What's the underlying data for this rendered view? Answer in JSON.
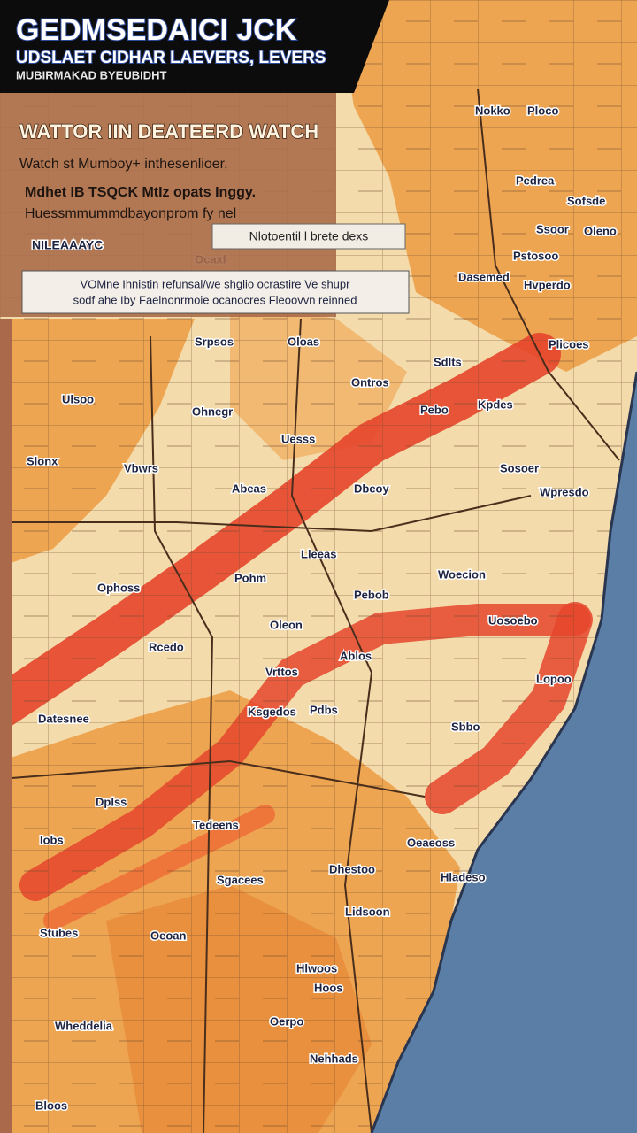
{
  "header": {
    "title": "GEDMSEDAICI JCK",
    "subtitle": "UDSLAET CIDHAR LAEVERS, LEVERS",
    "tagline": "MUBIRMAKAD BYEUBIDHT"
  },
  "panel": {
    "heading": "WATTOR IIN DEATEERD WATCH",
    "lines": [
      "Watch st Mumboy+ inthesenlioer,",
      "Mdhet IB TSQCK MtIz opats Inggy.",
      "Huessmmummdbayonprom fy nel"
    ],
    "tag": "NILEAAAYC"
  },
  "notice": "Nlotoentil l brete dexs",
  "alert": {
    "lines": [
      "VOMne Ihnistin refunsal/we shglio ocrastire Ve shupr",
      "sodf ahe Iby Faelnonrmoie ocanocres Fleoovvn reinned"
    ]
  },
  "map": {
    "labels": [
      "Nokko",
      "Ploco",
      "Pedrea",
      "Sofsde",
      "Ssoor",
      "Oleno",
      "Pstosoo",
      "Ocaxl",
      "Dasemed",
      "Hvperdo",
      "Srpsos",
      "Oloas",
      "Sdlts",
      "Plicoes",
      "Ulsoo",
      "Ohnegr",
      "Pebo",
      "Kpdes",
      "Ontros",
      "Uesss",
      "Slonx",
      "Vbwrs",
      "Sosoer",
      "Abeas",
      "Dbeoy",
      "Wpresdo",
      "Lleeas",
      "Pohm",
      "Woecion",
      "Ophoss",
      "Pebob",
      "Oleon",
      "Rcedo",
      "Ablos",
      "Uosoebo",
      "Vrttos",
      "Ksgedos",
      "Pdbs",
      "Lopoo",
      "Sbbo",
      "Datesnee",
      "Dplss",
      "Tedeens",
      "Oeaeoss",
      "Iobs",
      "Dhestoo",
      "Hladeso",
      "Sgacees",
      "Stubes",
      "Oeoan",
      "Lidsoon",
      "Hlwoos",
      "Hoos",
      "Wheddelia",
      "Oerpo",
      "Nehhads",
      "Bloos"
    ]
  }
}
